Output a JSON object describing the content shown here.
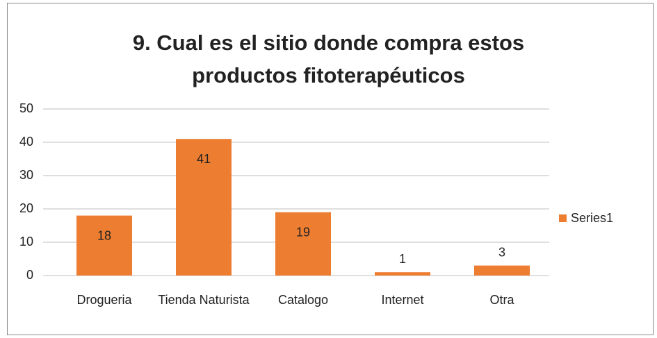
{
  "chart_data": {
    "type": "bar",
    "title": "9. Cual es el sitio donde compra estos productos fitoterapéuticos",
    "categories": [
      "Drogueria",
      "Tienda Naturista",
      "Catalogo",
      "Internet",
      "Otra"
    ],
    "series": [
      {
        "name": "Series1",
        "color": "#ed7d31",
        "values": [
          18,
          41,
          19,
          1,
          3
        ]
      }
    ],
    "ylim": [
      0,
      50
    ],
    "yticks": [
      0,
      10,
      20,
      30,
      40,
      50
    ],
    "grid": true,
    "legend": "right"
  }
}
